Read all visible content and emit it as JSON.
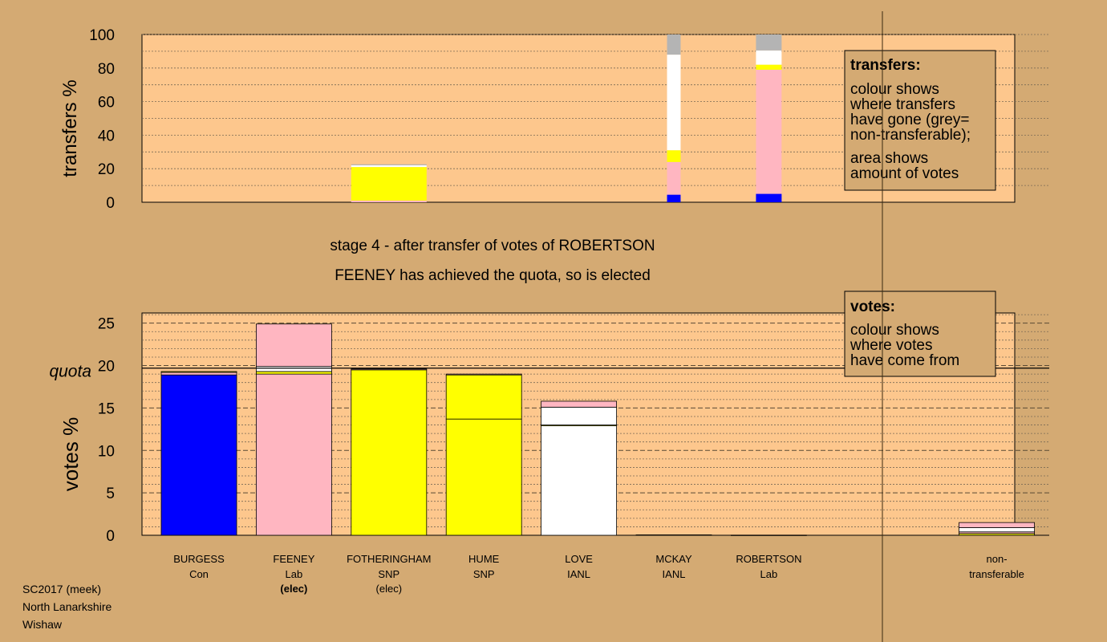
{
  "colors": {
    "background": "#d4aa73",
    "panel": "#fdc78d",
    "Con": "#0000ff",
    "Lab": "#ffb6c1",
    "SNP": "#ffff00",
    "IANL": "#ffffff",
    "nontransferable": "#b4b4b4"
  },
  "stage_text": {
    "line1": "stage 4 - after transfer of votes of ROBERTSON",
    "line2": "FEENEY has achieved the quota, so is elected"
  },
  "footer": {
    "line1": "SC2017 (meek)",
    "line2": "North Lanarkshire",
    "line3": "Wishaw"
  },
  "legend_transfers": {
    "title": "transfers:",
    "lines": [
      "colour shows",
      "where transfers",
      "have gone (grey=",
      "non-transferable);"
    ],
    "lines2": [
      "area shows",
      "amount of votes"
    ]
  },
  "legend_votes": {
    "title": "votes:",
    "lines": [
      "colour shows",
      "where votes",
      "have come from"
    ]
  },
  "chart_data": [
    {
      "type": "bar",
      "name": "transfers",
      "ylabel": "transfers %",
      "ylim": [
        0,
        100
      ],
      "yticks": [
        0,
        20,
        40,
        60,
        80,
        100
      ],
      "bars": [
        {
          "slot": 2,
          "width_frac": 1.0,
          "segments": [
            {
              "party": "Lab",
              "from": 0,
              "to": 1
            },
            {
              "party": "SNP",
              "from": 1,
              "to": 21
            },
            {
              "party": "IANL",
              "from": 21,
              "to": 22
            },
            {
              "party": "nontransferable",
              "from": 22,
              "to": 22.6
            }
          ]
        },
        {
          "slot": 5,
          "width_frac": 0.18,
          "segments": [
            {
              "party": "Con",
              "from": 0,
              "to": 4.5
            },
            {
              "party": "Lab",
              "from": 4.5,
              "to": 24
            },
            {
              "party": "SNP",
              "from": 24,
              "to": 31
            },
            {
              "party": "IANL",
              "from": 31,
              "to": 88
            },
            {
              "party": "nontransferable",
              "from": 88,
              "to": 100
            }
          ]
        },
        {
          "slot": 6,
          "width_frac": 0.34,
          "segments": [
            {
              "party": "Con",
              "from": 0,
              "to": 5
            },
            {
              "party": "Lab",
              "from": 5,
              "to": 79
            },
            {
              "party": "SNP",
              "from": 79,
              "to": 82
            },
            {
              "party": "IANL",
              "from": 82,
              "to": 90.5
            },
            {
              "party": "nontransferable",
              "from": 90.5,
              "to": 100
            }
          ]
        }
      ]
    },
    {
      "type": "bar",
      "name": "votes",
      "ylabel": "votes %",
      "ylim": [
        0,
        26.2
      ],
      "yticks": [
        0,
        5,
        10,
        15,
        20,
        25
      ],
      "quota": 19.7,
      "quota_label": "quota",
      "categories": [
        {
          "name": "BURGESS",
          "party": "Con",
          "note": ""
        },
        {
          "name": "FEENEY",
          "party": "Lab",
          "note": "(elec)"
        },
        {
          "name": "FOTHERINGHAM",
          "party": "SNP",
          "note": "(elec)"
        },
        {
          "name": "HUME",
          "party": "SNP",
          "note": ""
        },
        {
          "name": "LOVE",
          "party": "IANL",
          "note": ""
        },
        {
          "name": "MCKAY",
          "party": "IANL",
          "note": ""
        },
        {
          "name": "ROBERTSON",
          "party": "Lab",
          "note": ""
        },
        {
          "name": "non-",
          "party": "transferable",
          "note": ""
        }
      ],
      "stacks": [
        [
          [
            "Con",
            0,
            18.9
          ],
          [
            "Lab",
            18.9,
            19.2
          ],
          [
            "SNP",
            19.2,
            19.3
          ]
        ],
        [
          [
            "Lab",
            0,
            19.0
          ],
          [
            "SNP",
            19.0,
            19.3
          ],
          [
            "IANL",
            19.3,
            19.9
          ],
          [
            "Lab",
            19.9,
            24.9
          ]
        ],
        [
          [
            "SNP",
            0,
            19.5
          ],
          [
            "Lab",
            19.5,
            19.6
          ]
        ],
        [
          [
            "SNP",
            0,
            13.7
          ],
          [
            "SNP",
            13.7,
            18.9
          ],
          [
            "Lab",
            18.9,
            19.0
          ]
        ],
        [
          [
            "IANL",
            0,
            12.9
          ],
          [
            "SNP",
            12.9,
            13.0
          ],
          [
            "IANL",
            13.0,
            15.1
          ],
          [
            "Lab",
            15.1,
            15.8
          ]
        ],
        [
          [
            "IANL",
            0,
            0.05
          ]
        ],
        [
          [
            "Lab",
            0,
            0.02
          ]
        ],
        [
          [
            "SNP",
            0,
            0.2
          ],
          [
            "Lab",
            0.2,
            0.4
          ],
          [
            "IANL",
            0.4,
            0.9
          ],
          [
            "Lab",
            0.9,
            1.5
          ]
        ]
      ]
    }
  ]
}
